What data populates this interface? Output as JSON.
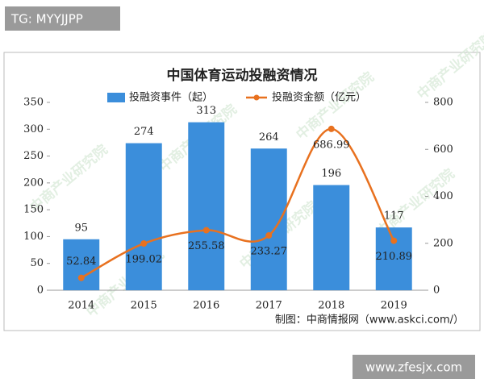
{
  "tg_label": "TG: MYYJJPP",
  "site_label": "www.zfesjx.com",
  "chart_data": {
    "type": "bar-line",
    "title": "中国体育运动投融资情况",
    "source": "制图：中商情报网（www.askci.com/）",
    "watermark": "中商产业研究院",
    "categories": [
      "2014",
      "2015",
      "2016",
      "2017",
      "2018",
      "2019"
    ],
    "series": [
      {
        "name": "投融资事件（起）",
        "type": "bar",
        "color": "#3b8edb",
        "values": [
          95,
          274,
          313,
          264,
          196,
          117
        ]
      },
      {
        "name": "投融资金额（亿元）",
        "type": "line",
        "axis": "y2",
        "smooth": true,
        "color": "#e8711f",
        "values": [
          52.84,
          199.02,
          255.58,
          233.27,
          686.99,
          210.89
        ]
      }
    ],
    "ylim": [
      0,
      350
    ],
    "yticks": [
      0,
      50,
      100,
      150,
      200,
      250,
      300,
      350
    ],
    "y2lim": [
      0,
      800
    ],
    "y2ticks": [
      0,
      200,
      400,
      600,
      800
    ],
    "grid": false
  }
}
